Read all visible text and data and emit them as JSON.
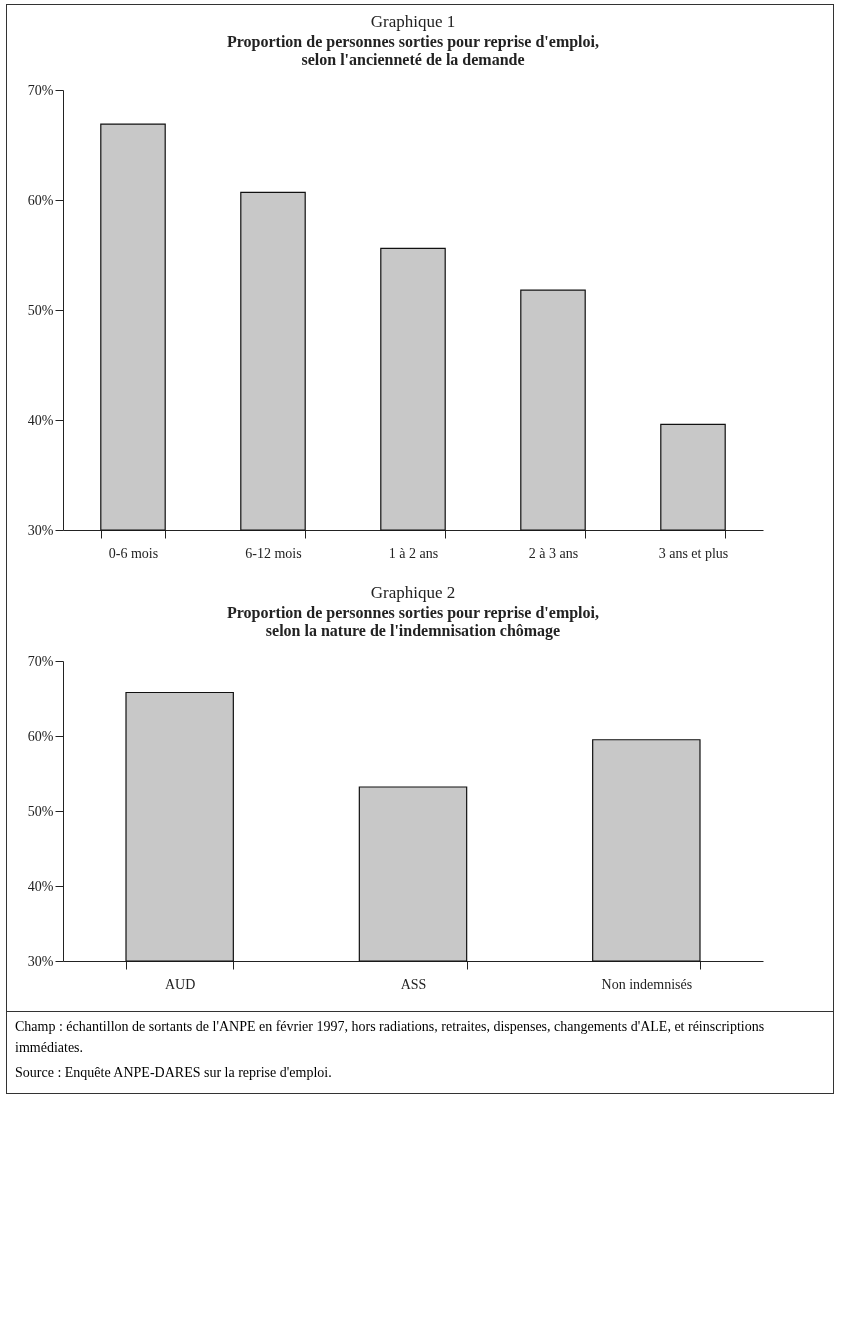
{
  "chart_data": [
    {
      "type": "bar",
      "title": "Graphique 1",
      "subtitle": "Proportion de personnes sorties pour reprise d'emploi,\nselon l'ancienneté de la demande",
      "categories": [
        "0-6 mois",
        "6-12 mois",
        "1 à 2 ans",
        "2 à 3 ans",
        "3 ans et plus"
      ],
      "values": [
        66.9,
        60.7,
        55.6,
        51.8,
        39.6
      ],
      "color": "#c8c8c8",
      "ylim": [
        30,
        70
      ],
      "yticks": [
        {
          "value": 30,
          "label": "30%"
        },
        {
          "value": 40,
          "label": "40%"
        },
        {
          "value": 50,
          "label": "50%"
        },
        {
          "value": 60,
          "label": "60%"
        },
        {
          "value": 70,
          "label": "70%"
        }
      ],
      "grid": false
    },
    {
      "type": "bar",
      "title": "Graphique 2",
      "subtitle": "Proportion de personnes sorties pour reprise d'emploi,\nselon la nature de l'indemnisation chômage",
      "categories": [
        "AUD",
        "ASS",
        "Non indemnisés"
      ],
      "values": [
        65.8,
        53.2,
        59.5
      ],
      "color": "#c8c8c8",
      "ylim": [
        30,
        70
      ],
      "yticks": [
        {
          "value": 30,
          "label": "30%"
        },
        {
          "value": 40,
          "label": "40%"
        },
        {
          "value": 50,
          "label": "50%"
        },
        {
          "value": 60,
          "label": "60%"
        },
        {
          "value": 70,
          "label": "70%"
        }
      ],
      "grid": false,
      "annotations": [
        "Champ : échantillon de sortants de l'ANPE en février 1997, hors radiations, retraites, dispenses, changements d'ALE, et réinscriptions immédiates.",
        "Source : Enquête ANPE-DARES sur la reprise d'emploi."
      ]
    }
  ]
}
